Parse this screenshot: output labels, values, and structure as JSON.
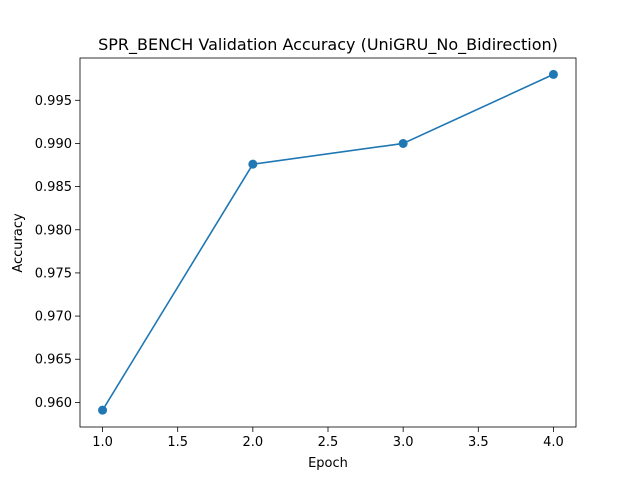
{
  "chart_data": {
    "type": "line",
    "title": "SPR_BENCH Validation Accuracy (UniGRU_No_Bidirection)",
    "xlabel": "Epoch",
    "ylabel": "Accuracy",
    "x": [
      1.0,
      2.0,
      3.0,
      4.0
    ],
    "series": [
      {
        "name": "Validation Accuracy",
        "values": [
          0.9591,
          0.9876,
          0.99,
          0.998
        ]
      }
    ],
    "xlim": [
      0.85,
      4.15
    ],
    "ylim": [
      0.95715,
      0.9999
    ],
    "xticks": [
      1.0,
      1.5,
      2.0,
      2.5,
      3.0,
      3.5,
      4.0
    ],
    "xtick_labels": [
      "1.0",
      "1.5",
      "2.0",
      "2.5",
      "3.0",
      "3.5",
      "4.0"
    ],
    "yticks": [
      0.96,
      0.965,
      0.97,
      0.975,
      0.98,
      0.985,
      0.99,
      0.995
    ],
    "ytick_labels": [
      "0.960",
      "0.965",
      "0.970",
      "0.975",
      "0.980",
      "0.985",
      "0.990",
      "0.995"
    ],
    "line_color": "#1f77b4",
    "marker": "circle",
    "grid": false,
    "legend": "none"
  }
}
